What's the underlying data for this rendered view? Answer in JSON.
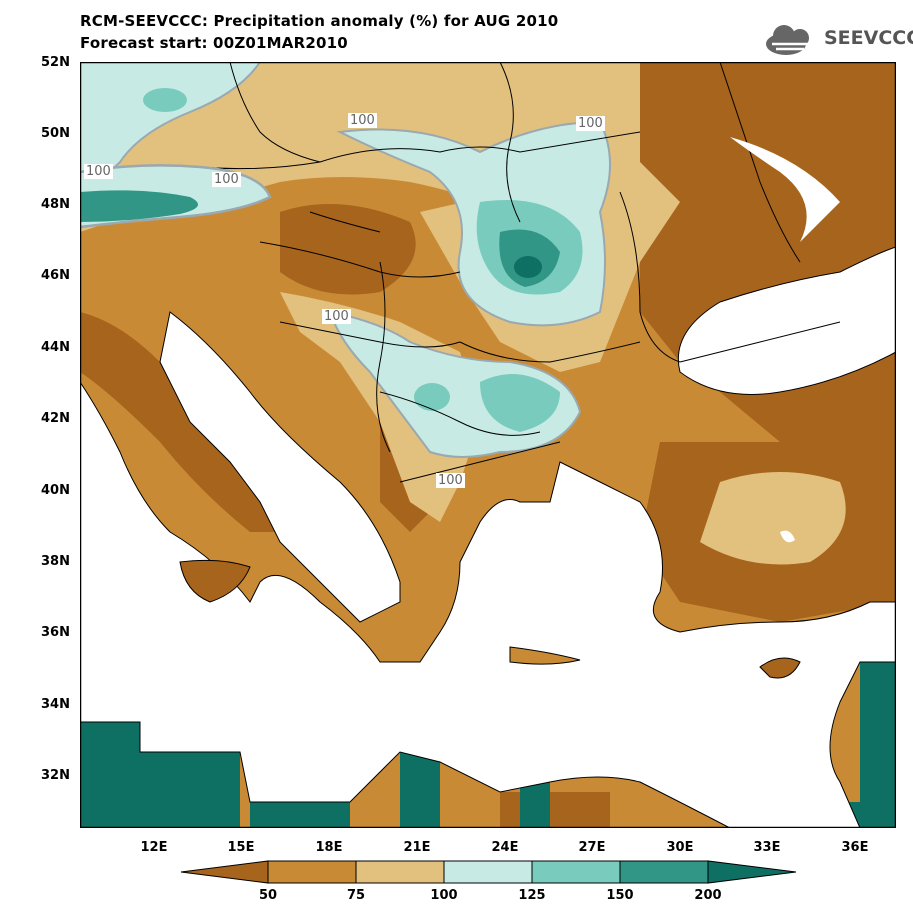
{
  "title_line1": "RCM-SEEVCCC: Precipitation anomaly (%) for AUG 2010",
  "title_line2": "Forecast start: 00Z01MAR2010",
  "logo_text": "SEEVCCC",
  "logo_icon": "cloud-icon",
  "lat_labels": [
    "52N",
    "50N",
    "48N",
    "46N",
    "44N",
    "42N",
    "40N",
    "38N",
    "36N",
    "34N",
    "32N"
  ],
  "lon_labels": [
    "12E",
    "15E",
    "18E",
    "21E",
    "24E",
    "27E",
    "30E",
    "33E",
    "36E"
  ],
  "contour_labels": [
    "100",
    "100",
    "100",
    "100",
    "100",
    "100"
  ],
  "colorbar": {
    "ticks": [
      "50",
      "75",
      "100",
      "125",
      "150",
      "200"
    ],
    "colors": [
      "#a7641c",
      "#c98a35",
      "#e2c07e",
      "#c7ebe4",
      "#79ccbd",
      "#319686",
      "#0e6f63"
    ]
  },
  "map_colors": {
    "sea": "#ffffff",
    "dark_brown": "#a7641c",
    "brown": "#c98a35",
    "tan": "#e2c07e",
    "light_teal": "#c7ebe4",
    "teal": "#79ccbd",
    "dark_teal": "#319686",
    "darkest_teal": "#0e6f63",
    "contour_line": "#9aa8b0"
  }
}
